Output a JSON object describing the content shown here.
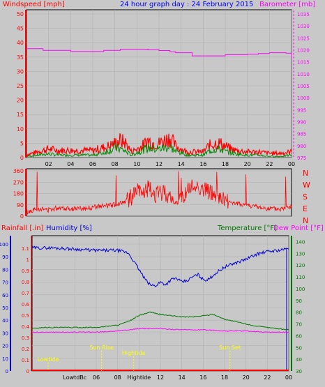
{
  "colors": {
    "background": "#c8c8c8",
    "windspeed": "#ff0000",
    "gust": "#ff0000",
    "average_wind": "#008800",
    "barometer": "#ff00ff",
    "direction": "#ff0000",
    "title": "#0000ff",
    "humidity": "#0000cc",
    "temperature": "#007700",
    "dewpoint": "#ff00ff",
    "rainfall": "#ff0000",
    "annotation": "#ffff00",
    "black": "#000000"
  },
  "title": "24 hour graph day : 24 February 2015",
  "panels": {
    "wind": {
      "left_label": "Windspeed [mph]",
      "right_label": "Barometer [mb]",
      "left_ticks": [
        "0",
        "5",
        "10",
        "15",
        "20",
        "25",
        "30",
        "35",
        "40",
        "45",
        "50"
      ],
      "right_ticks": [
        "975",
        "980",
        "985",
        "990",
        "995",
        "1000",
        "1005",
        "1010",
        "1015",
        "1020",
        "1025",
        "1030",
        "1035"
      ],
      "x_ticks": [
        "02",
        "04",
        "06",
        "08",
        "10",
        "12",
        "14",
        "16",
        "18",
        "20",
        "22",
        "00"
      ]
    },
    "direction": {
      "left_ticks": [
        "0",
        "90",
        "180",
        "270",
        "360"
      ],
      "compass": [
        "N",
        "W",
        "S",
        "E",
        "N"
      ]
    },
    "temp": {
      "rain_label": "Rainfall [.in]",
      "humidity_label": "Humidity [%]",
      "temperature_label": "Temperature [°F]",
      "dewpoint_label": "Dew Point [°F]",
      "humidity_ticks": [
        "0",
        "10",
        "20",
        "30",
        "40",
        "50",
        "60",
        "70",
        "80",
        "90",
        "100"
      ],
      "rain_ticks": [
        "0",
        "0.1",
        "0.2",
        "0.3",
        "0.4",
        "0.5",
        "0.6",
        "0.7",
        "0.8",
        "0.9",
        "1",
        "1.1"
      ],
      "temp_ticks": [
        "30",
        "40",
        "50",
        "60",
        "70",
        "80",
        "90",
        "100",
        "110",
        "120",
        "130",
        "140"
      ],
      "x_ticks": [
        "LowtdBc",
        "06",
        "08",
        "Hightide",
        "12",
        "14",
        "16",
        "18",
        "20",
        "22",
        "00"
      ],
      "annotations": [
        "Lowtide",
        "Sun Rise",
        "Hightide",
        "Sun Set"
      ]
    }
  },
  "chart_data": [
    {
      "type": "line",
      "title": "24 hour graph day : 24 February 2015",
      "ylabel": "Windspeed [mph]",
      "y2label": "Barometer [mb]",
      "ylim": [
        0,
        50
      ],
      "y2lim": [
        975,
        1035
      ],
      "x_ticks": [
        "02",
        "04",
        "06",
        "08",
        "10",
        "12",
        "14",
        "16",
        "18",
        "20",
        "22",
        "00"
      ],
      "series": [
        {
          "name": "Barometer [mb]",
          "axis": "right",
          "x": [
            0,
            1,
            1.5,
            2,
            3,
            4,
            5,
            6,
            7,
            8,
            8.5,
            9,
            10,
            11,
            12,
            13,
            13.5,
            14,
            15,
            16,
            17,
            18,
            19,
            20,
            21,
            22,
            23,
            23.5,
            24
          ],
          "values": [
            1020.5,
            1020.5,
            1019.8,
            1019.8,
            1019.8,
            1019.3,
            1019.3,
            1019.3,
            1019.8,
            1019.8,
            1020.3,
            1020.3,
            1020.3,
            1020.0,
            1019.7,
            1019.2,
            1018.8,
            1018.8,
            1017.5,
            1017.5,
            1017.5,
            1018.0,
            1018.0,
            1018.2,
            1018.5,
            1018.8,
            1018.8,
            1018.6,
            1016.5
          ]
        },
        {
          "name": "Wind gust [mph]",
          "x": [
            0,
            1,
            2,
            3,
            4,
            5,
            6,
            7,
            7.5,
            8,
            8.5,
            9,
            9.5,
            10,
            10.5,
            11,
            11.5,
            12,
            12.5,
            13,
            13.5,
            14,
            14.5,
            15,
            16,
            16.5,
            17,
            17.5,
            18,
            18.5,
            19,
            20,
            21,
            22,
            23,
            24
          ],
          "values": [
            1,
            2,
            3,
            2.5,
            2.5,
            2.5,
            2.5,
            3.5,
            4,
            5,
            6,
            5,
            2,
            3,
            4,
            6,
            5,
            5,
            6,
            7,
            4,
            3,
            2,
            2,
            2,
            4,
            5,
            5,
            4,
            3,
            2.5,
            2,
            2,
            1.5,
            1.5,
            2
          ]
        },
        {
          "name": "Average wind [mph]",
          "x": [
            0,
            1,
            2,
            3,
            4,
            5,
            6,
            7,
            7.5,
            8,
            8.5,
            9,
            9.5,
            10,
            10.5,
            11,
            11.5,
            12,
            12.5,
            13,
            13.5,
            14,
            14.5,
            15,
            16,
            16.5,
            17,
            17.5,
            18,
            18.5,
            19,
            20,
            21,
            22,
            23,
            24
          ],
          "values": [
            0.5,
            1,
            1.5,
            1,
            1,
            1,
            1,
            2,
            3,
            4,
            3.5,
            2.5,
            1,
            2,
            3,
            4,
            3.5,
            3.5,
            4,
            4.5,
            2.5,
            2,
            1,
            1,
            1,
            2.5,
            3.5,
            3.5,
            2.5,
            2,
            1.5,
            1,
            1,
            0.5,
            0.5,
            1
          ]
        }
      ]
    },
    {
      "type": "line",
      "ylabel": "Wind direction",
      "ylim": [
        0,
        360
      ],
      "x": [
        0,
        1,
        2,
        3,
        4,
        5,
        6,
        7,
        8,
        9,
        9.5,
        10,
        10.5,
        11,
        11.5,
        12,
        12.5,
        13,
        13.5,
        14,
        14.5,
        15,
        15.5,
        16,
        16.5,
        17,
        17.5,
        18,
        18.5,
        19,
        20,
        21,
        22,
        23,
        24
      ],
      "series": [
        {
          "name": "Wind direction",
          "values": [
            30,
            60,
            50,
            70,
            60,
            60,
            70,
            80,
            90,
            120,
            150,
            200,
            180,
            220,
            180,
            170,
            200,
            140,
            100,
            130,
            200,
            230,
            240,
            210,
            200,
            170,
            140,
            130,
            110,
            100,
            90,
            70,
            60,
            55,
            80
          ]
        }
      ]
    },
    {
      "type": "line",
      "ylabel": "Humidity [%]",
      "y2label": "Temperature [°F]",
      "ylim": [
        0,
        100
      ],
      "y2lim": [
        30,
        145
      ],
      "series": [
        {
          "name": "Humidity [%]",
          "x": [
            0,
            2,
            4,
            6,
            8,
            9,
            10,
            10.5,
            11,
            11.5,
            12,
            12.5,
            13,
            13.5,
            14,
            14.5,
            15,
            15.5,
            16,
            16.5,
            17,
            18,
            19,
            20,
            21,
            22,
            23,
            23.8,
            23.9,
            24
          ],
          "values": [
            97,
            97,
            96,
            95,
            95,
            93,
            80,
            73,
            68,
            67,
            70,
            68,
            72,
            73,
            70,
            71,
            74,
            76,
            72,
            72,
            76,
            82,
            85,
            88,
            92,
            94,
            95,
            96,
            97,
            97
          ]
        },
        {
          "name": "Temperature [°F]",
          "axis": "right",
          "x": [
            0,
            1,
            2,
            3,
            4,
            5,
            6,
            7,
            8,
            9,
            10,
            11,
            12,
            13,
            14,
            15,
            16,
            17,
            18,
            19,
            20,
            21,
            22,
            23,
            24
          ],
          "values": [
            66,
            67,
            67,
            67,
            67,
            67,
            67,
            68,
            69,
            72,
            77,
            80,
            78,
            77,
            76,
            76,
            77,
            78,
            74,
            72,
            70,
            68,
            67,
            66,
            65
          ]
        },
        {
          "name": "Dew Point [°F]",
          "axis": "right",
          "x": [
            0,
            2,
            4,
            6,
            8,
            10,
            12,
            14,
            16,
            18,
            20,
            22,
            24
          ],
          "values": [
            63,
            63,
            63,
            63,
            64,
            66,
            66,
            65,
            65,
            64,
            64,
            63,
            63
          ]
        },
        {
          "name": "Rainfall [.in]",
          "x": [
            0,
            24
          ],
          "values": [
            0,
            0
          ]
        }
      ]
    }
  ]
}
